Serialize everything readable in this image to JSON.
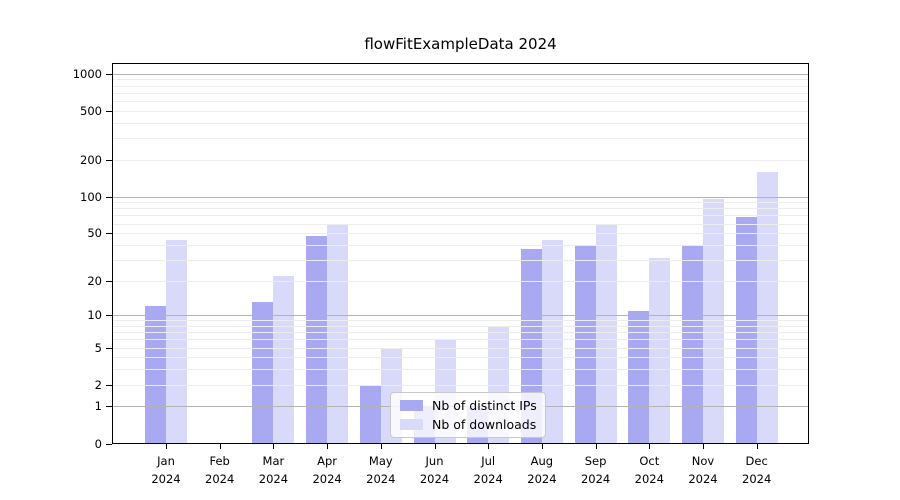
{
  "title": "flowFitExampleData 2024",
  "chart_data": {
    "type": "bar",
    "title": "flowFitExampleData 2024",
    "categories": [
      {
        "month": "Jan",
        "year": "2024"
      },
      {
        "month": "Feb",
        "year": "2024"
      },
      {
        "month": "Mar",
        "year": "2024"
      },
      {
        "month": "Apr",
        "year": "2024"
      },
      {
        "month": "May",
        "year": "2024"
      },
      {
        "month": "Jun",
        "year": "2024"
      },
      {
        "month": "Jul",
        "year": "2024"
      },
      {
        "month": "Aug",
        "year": "2024"
      },
      {
        "month": "Sep",
        "year": "2024"
      },
      {
        "month": "Oct",
        "year": "2024"
      },
      {
        "month": "Nov",
        "year": "2024"
      },
      {
        "month": "Dec",
        "year": "2024"
      }
    ],
    "series": [
      {
        "name": "Nb of distinct IPs",
        "color": "#a9a9f1",
        "values": [
          12,
          0,
          13,
          47,
          2,
          1,
          1,
          37,
          40,
          11,
          40,
          68
        ]
      },
      {
        "name": "Nb of downloads",
        "color": "#d9d9f9",
        "values": [
          44,
          0,
          22,
          60,
          5,
          6,
          8,
          44,
          58,
          31,
          95,
          160
        ]
      }
    ],
    "xlabel": "",
    "ylabel": "",
    "yscale": "log1p",
    "ylim": [
      0,
      1226
    ],
    "y_ticks": [
      0,
      1,
      2,
      5,
      10,
      20,
      50,
      100,
      200,
      500,
      1000
    ],
    "major_grid_values": [
      1,
      10,
      100,
      1000
    ],
    "minor_grid_values": [
      2,
      3,
      4,
      5,
      6,
      7,
      8,
      9,
      20,
      30,
      40,
      50,
      60,
      70,
      80,
      90,
      200,
      300,
      400,
      500,
      600,
      700,
      800,
      900
    ],
    "grid": true,
    "grid_above_bars": true,
    "legend_position": "lower-center"
  },
  "colors": {
    "major_grid": "#b3b3b3",
    "minor_grid": "#ececec",
    "axis": "#000000",
    "background": "#ffffff"
  }
}
